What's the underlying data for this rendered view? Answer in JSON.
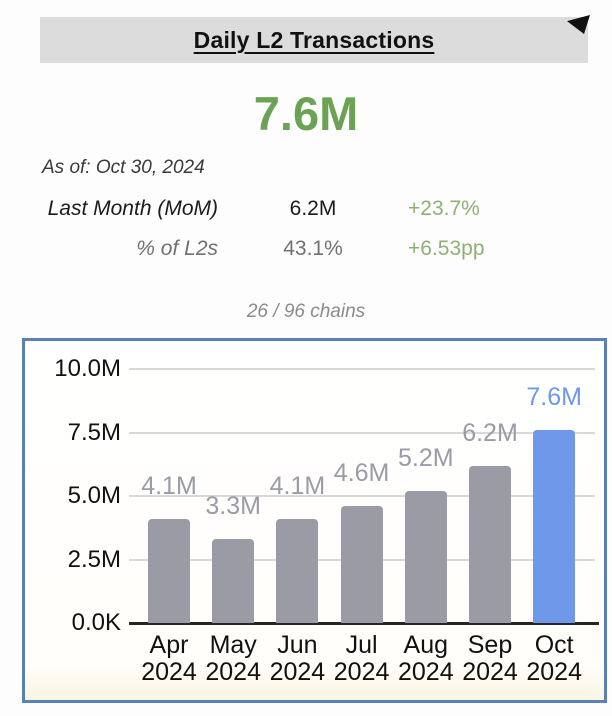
{
  "header": {
    "title": "Daily L2 Transactions"
  },
  "summary": {
    "big_value": "7.6M",
    "as_of": "As of: Oct 30, 2024",
    "rows": [
      {
        "label": "Last Month (MoM)",
        "value": "6.2M",
        "delta": "+23.7%"
      },
      {
        "label": "% of L2s",
        "value": "43.1%",
        "delta": "+6.53pp"
      }
    ],
    "chains_note": "26 / 96 chains"
  },
  "colors": {
    "accent_green": "#6ca253",
    "delta_green": "#8fb074",
    "bar_gray": "#9b9ba6",
    "bar_highlight_blue": "#6f98ea",
    "chart_border_blue": "#5b7fb7",
    "banner_gray": "#dcdcdc",
    "gridline_gray": "#d9d9d9"
  },
  "chart_data": {
    "type": "bar",
    "title": "",
    "xlabel": "",
    "ylabel": "",
    "categories": [
      "Apr 2024",
      "May 2024",
      "Jun 2024",
      "Jul 2024",
      "Aug 2024",
      "Sep 2024",
      "Oct 2024"
    ],
    "values": [
      4.1,
      3.3,
      4.1,
      4.6,
      5.2,
      6.2,
      7.6
    ],
    "value_labels": [
      "4.1M",
      "3.3M",
      "4.1M",
      "4.6M",
      "5.2M",
      "6.2M",
      "7.6M"
    ],
    "unit": "M transactions",
    "y_ticks": [
      "0.0K",
      "2.5M",
      "5.0M",
      "7.5M",
      "10.0M"
    ],
    "ylim": [
      0,
      10
    ],
    "grid": true,
    "legend": false,
    "highlight_index": 6
  }
}
